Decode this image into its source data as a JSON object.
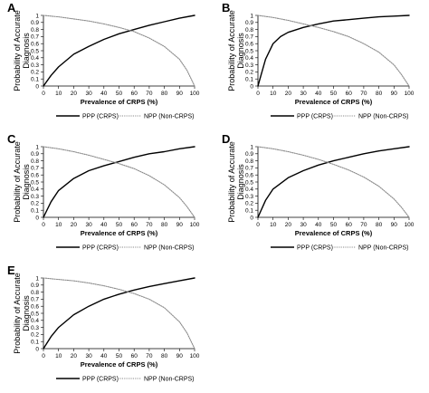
{
  "chart_data": [
    {
      "panel": "A",
      "type": "line",
      "xlabel": "Prevalence of CRPS (%)",
      "ylabel": "Probability of Accurate Diagnosis",
      "xlim": [
        0,
        100
      ],
      "ylim": [
        0,
        1
      ],
      "xticks": [
        0,
        10,
        20,
        30,
        40,
        50,
        60,
        70,
        80,
        90,
        100
      ],
      "yticks": [
        0,
        0.1,
        0.2,
        0.3,
        0.4,
        0.5,
        0.6,
        0.7,
        0.8,
        0.9,
        1
      ],
      "yticklabels": [
        "0",
        "0.1",
        "0.2",
        "0.3",
        "0.4",
        "0.5",
        "0.6",
        "0.7",
        "0.8",
        "0.9",
        "1"
      ],
      "legend_position": "bottom",
      "series": [
        {
          "name": "PPP (CRPS)",
          "color": "#000000",
          "style": "solid",
          "x": [
            0,
            5,
            10,
            20,
            30,
            40,
            50,
            60,
            70,
            80,
            90,
            100
          ],
          "y": [
            0,
            0.15,
            0.27,
            0.45,
            0.56,
            0.66,
            0.74,
            0.8,
            0.86,
            0.91,
            0.96,
            1.0
          ]
        },
        {
          "name": "NPP (Non-CRPS)",
          "color": "#8a8a8a",
          "style": "dotted",
          "x": [
            0,
            10,
            20,
            30,
            40,
            50,
            60,
            70,
            80,
            90,
            95,
            100
          ],
          "y": [
            1.0,
            0.98,
            0.95,
            0.92,
            0.88,
            0.83,
            0.77,
            0.68,
            0.56,
            0.38,
            0.22,
            0
          ]
        }
      ]
    },
    {
      "panel": "B",
      "type": "line",
      "xlabel": "Prevalence of CRPS (%)",
      "ylabel": "Probability of Accurate Diagnosis",
      "xlim": [
        0,
        100
      ],
      "ylim": [
        0,
        1
      ],
      "xticks": [
        0,
        10,
        20,
        30,
        40,
        50,
        60,
        70,
        80,
        90,
        100
      ],
      "yticks": [
        0,
        0.1,
        0.2,
        0.3,
        0.4,
        0.5,
        0.6,
        0.7,
        0.8,
        0.9,
        1
      ],
      "yticklabels": [
        "0",
        "0.1",
        "0.2",
        "0.3",
        "0.4",
        "0.5",
        "0.6",
        "0.7",
        "0.8",
        "0.9",
        "1"
      ],
      "legend_position": "bottom",
      "series": [
        {
          "name": "PPP (CRPS)",
          "color": "#000000",
          "style": "solid",
          "x": [
            0,
            2,
            5,
            10,
            15,
            20,
            30,
            40,
            50,
            60,
            70,
            80,
            90,
            100
          ],
          "y": [
            0,
            0.15,
            0.38,
            0.6,
            0.7,
            0.76,
            0.83,
            0.88,
            0.92,
            0.94,
            0.96,
            0.98,
            0.99,
            1.0
          ]
        },
        {
          "name": "NPP (Non-CRPS)",
          "color": "#8a8a8a",
          "style": "dotted",
          "x": [
            0,
            10,
            20,
            30,
            40,
            50,
            60,
            70,
            80,
            90,
            95,
            100
          ],
          "y": [
            1.0,
            0.97,
            0.93,
            0.88,
            0.83,
            0.77,
            0.7,
            0.6,
            0.48,
            0.3,
            0.16,
            0
          ]
        }
      ]
    },
    {
      "panel": "C",
      "type": "line",
      "xlabel": "Prevalence of CRPS (%)",
      "ylabel": "Probability of Accurate Diagnosis",
      "xlim": [
        0,
        100
      ],
      "ylim": [
        0,
        1
      ],
      "xticks": [
        0,
        10,
        20,
        30,
        40,
        50,
        60,
        70,
        80,
        90,
        100
      ],
      "yticks": [
        0,
        0.1,
        0.2,
        0.3,
        0.4,
        0.5,
        0.6,
        0.7,
        0.8,
        0.9,
        1
      ],
      "yticklabels": [
        "0",
        "0.1",
        "0.2",
        "0.3",
        "0.4",
        "0.5",
        "0.6",
        "0.7",
        "0.8",
        "0.9",
        "1"
      ],
      "legend_position": "bottom",
      "series": [
        {
          "name": "PPP (CRPS)",
          "color": "#000000",
          "style": "solid",
          "x": [
            0,
            5,
            10,
            20,
            30,
            40,
            50,
            60,
            70,
            80,
            90,
            100
          ],
          "y": [
            0,
            0.22,
            0.38,
            0.55,
            0.66,
            0.73,
            0.79,
            0.85,
            0.9,
            0.93,
            0.97,
            1.0
          ]
        },
        {
          "name": "NPP (Non-CRPS)",
          "color": "#8a8a8a",
          "style": "dotted",
          "x": [
            0,
            10,
            20,
            30,
            40,
            50,
            60,
            70,
            80,
            90,
            95,
            100
          ],
          "y": [
            1.0,
            0.97,
            0.93,
            0.88,
            0.82,
            0.76,
            0.69,
            0.59,
            0.46,
            0.28,
            0.15,
            0
          ]
        }
      ]
    },
    {
      "panel": "D",
      "type": "line",
      "xlabel": "Prevalence of CRPS (%)",
      "ylabel": "Probability of Accurate Diagnosis",
      "xlim": [
        0,
        100
      ],
      "ylim": [
        0,
        1
      ],
      "xticks": [
        0,
        10,
        20,
        30,
        40,
        50,
        60,
        70,
        80,
        90,
        100
      ],
      "yticks": [
        0,
        0.1,
        0.2,
        0.3,
        0.4,
        0.5,
        0.6,
        0.7,
        0.8,
        0.9,
        1
      ],
      "yticklabels": [
        "0",
        "0.1",
        "0.2",
        "0.3",
        "0.4",
        "0.5",
        "0.6",
        "0.7",
        "0.8",
        "0.9",
        "1"
      ],
      "legend_position": "bottom",
      "series": [
        {
          "name": "PPP (CRPS)",
          "color": "#000000",
          "style": "solid",
          "x": [
            0,
            5,
            10,
            20,
            30,
            40,
            50,
            60,
            70,
            80,
            90,
            100
          ],
          "y": [
            0,
            0.24,
            0.4,
            0.56,
            0.66,
            0.74,
            0.8,
            0.85,
            0.9,
            0.94,
            0.97,
            1.0
          ]
        },
        {
          "name": "NPP (Non-CRPS)",
          "color": "#8a8a8a",
          "style": "dotted",
          "x": [
            0,
            10,
            20,
            30,
            40,
            50,
            60,
            70,
            80,
            90,
            95,
            100
          ],
          "y": [
            1.0,
            0.97,
            0.93,
            0.88,
            0.82,
            0.75,
            0.67,
            0.57,
            0.44,
            0.26,
            0.14,
            0
          ]
        }
      ]
    },
    {
      "panel": "E",
      "type": "line",
      "xlabel": "Prevalence of CRPS (%)",
      "ylabel": "Probability of Accurate Diagnosis",
      "xlim": [
        0,
        100
      ],
      "ylim": [
        0,
        1
      ],
      "xticks": [
        0,
        10,
        20,
        30,
        40,
        50,
        60,
        70,
        80,
        90,
        100
      ],
      "yticks": [
        0,
        0.1,
        0.2,
        0.3,
        0.4,
        0.5,
        0.6,
        0.7,
        0.8,
        0.9,
        1
      ],
      "yticklabels": [
        "0",
        "0.1",
        "0.2",
        "0.3",
        "0.4",
        "0.5",
        "0.6",
        "0.7",
        "0.8",
        "0.9",
        "1"
      ],
      "legend_position": "bottom",
      "series": [
        {
          "name": "PPP (CRPS)",
          "color": "#000000",
          "style": "solid",
          "x": [
            0,
            5,
            10,
            20,
            30,
            40,
            50,
            60,
            70,
            80,
            90,
            100
          ],
          "y": [
            0,
            0.17,
            0.3,
            0.48,
            0.6,
            0.7,
            0.77,
            0.83,
            0.88,
            0.92,
            0.96,
            1.0
          ]
        },
        {
          "name": "NPP (Non-CRPS)",
          "color": "#8a8a8a",
          "style": "dotted",
          "x": [
            0,
            10,
            20,
            30,
            40,
            50,
            60,
            70,
            80,
            90,
            95,
            100
          ],
          "y": [
            1.0,
            0.98,
            0.96,
            0.93,
            0.89,
            0.84,
            0.78,
            0.7,
            0.58,
            0.38,
            0.22,
            0
          ]
        }
      ]
    }
  ]
}
